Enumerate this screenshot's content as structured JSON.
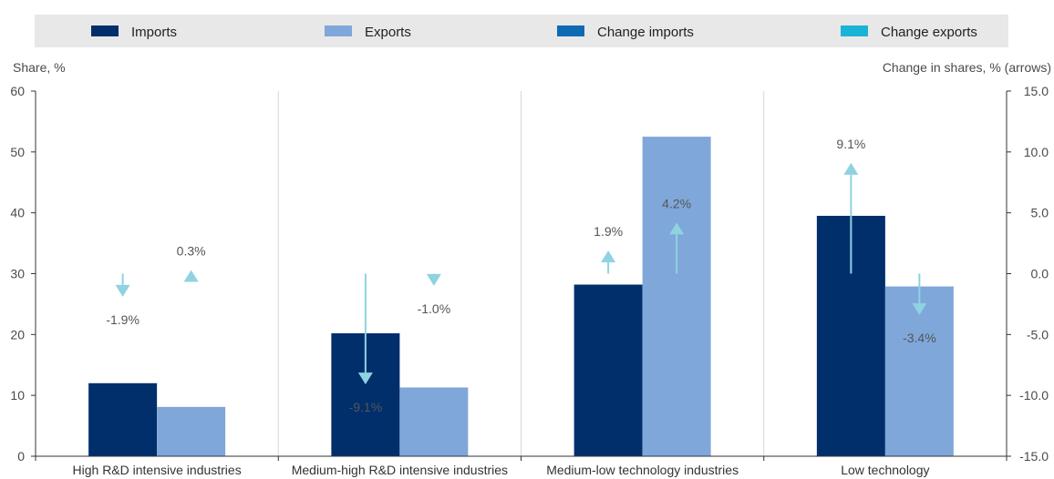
{
  "chart_data": {
    "type": "bar",
    "categories": [
      "High R&D intensive industries",
      "Medium-high R&D intensive industries",
      "Medium-low technology industries",
      "Low technology"
    ],
    "series": [
      {
        "name": "Imports",
        "color": "#002f6c",
        "values": [
          12,
          20.2,
          28.2,
          39.5
        ]
      },
      {
        "name": "Exports",
        "color": "#7fa7da",
        "values": [
          8.1,
          11.3,
          52.5,
          27.9
        ]
      }
    ],
    "change_series": [
      {
        "name": "Change imports",
        "legend_color": "#0f6ab4",
        "arrow_color": "#8fd2e0",
        "values": [
          -1.9,
          -9.1,
          1.9,
          9.1
        ],
        "labels": [
          "-1.9%",
          "-9.1%",
          "1.9%",
          "9.1%"
        ]
      },
      {
        "name": "Change exports",
        "legend_color": "#1ab3d6",
        "arrow_color": "#8fd2e0",
        "values": [
          0.3,
          -1.0,
          4.2,
          -3.4
        ],
        "labels": [
          "0.3%",
          "-1.0%",
          "4.2%",
          "-3.4%"
        ]
      }
    ],
    "ylabel_left": "Share, %",
    "ylabel_right": "Change in shares, % (arrows)",
    "ylim_left": [
      0,
      60
    ],
    "yticks_left": [
      0,
      10,
      20,
      30,
      40,
      50,
      60
    ],
    "ylim_right": [
      -15,
      15
    ],
    "yticks_right": [
      "-15.0",
      "-10.0",
      "-5.0",
      "0.0",
      "5.0",
      "10.0",
      "15.0"
    ],
    "legend_position": "top",
    "grid": "vertical category separators"
  }
}
